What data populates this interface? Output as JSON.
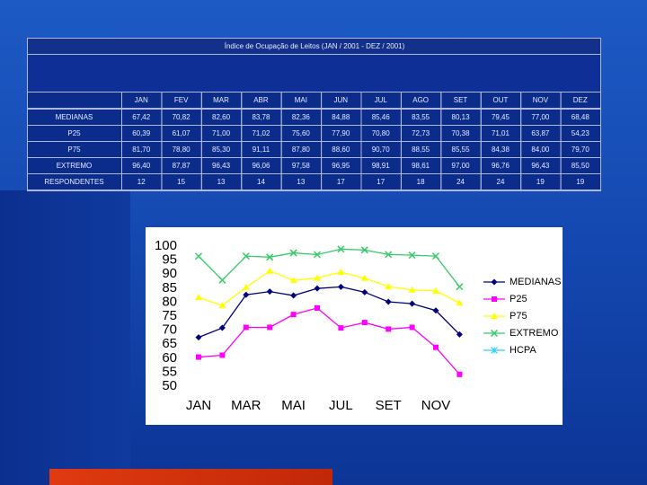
{
  "table": {
    "title": "Índice de Ocupação de Leitos (JAN / 2001 - DEZ / 2001)",
    "header": [
      "JAN",
      "FEV",
      "MAR",
      "ABR",
      "MAI",
      "JUN",
      "JUL",
      "AGO",
      "SET",
      "OUT",
      "NOV",
      "DEZ"
    ],
    "rows": [
      [
        "MEDIANAS",
        "67,42",
        "70,82",
        "82,60",
        "83,78",
        "82,36",
        "84,88",
        "85,46",
        "83,55",
        "80,13",
        "79,45",
        "77,00",
        "68,48"
      ],
      [
        "P25",
        "60,39",
        "61,07",
        "71,00",
        "71,02",
        "75,60",
        "77,90",
        "70,80",
        "72,73",
        "70,38",
        "71,01",
        "63,87",
        "54,23"
      ],
      [
        "P75",
        "81,70",
        "78,80",
        "85,30",
        "91,11",
        "87,80",
        "88,60",
        "90,70",
        "88,55",
        "85,55",
        "84,38",
        "84,00",
        "79,70"
      ],
      [
        "EXTREMO",
        "96,40",
        "87,87",
        "96,43",
        "96,06",
        "97,58",
        "96,95",
        "98,91",
        "98,61",
        "97,00",
        "96,76",
        "96,43",
        "85,50"
      ],
      [
        "RESPONDENTES",
        "12",
        "15",
        "13",
        "14",
        "13",
        "17",
        "17",
        "18",
        "24",
        "24",
        "19",
        "19"
      ]
    ]
  },
  "chart_data": {
    "type": "line",
    "categories": [
      "JAN",
      null,
      "MAR",
      null,
      "MAI",
      null,
      "JUL",
      null,
      "SET",
      null,
      "NOV",
      null
    ],
    "series": [
      {
        "name": "MEDIANAS",
        "color": "#000080",
        "marker": "diamond",
        "values": [
          67.42,
          70.82,
          82.6,
          83.78,
          82.36,
          84.88,
          85.46,
          83.55,
          80.13,
          79.45,
          77.0,
          68.48
        ]
      },
      {
        "name": "P25",
        "color": "#ff00ff",
        "marker": "square",
        "values": [
          60.39,
          61.07,
          71.0,
          71.02,
          75.6,
          77.9,
          70.8,
          72.73,
          70.38,
          71.01,
          63.87,
          54.23
        ]
      },
      {
        "name": "P75",
        "color": "#ffff00",
        "marker": "triangle",
        "values": [
          81.7,
          78.8,
          85.3,
          91.11,
          87.8,
          88.6,
          90.7,
          88.55,
          85.55,
          84.38,
          84.0,
          79.7
        ]
      },
      {
        "name": "EXTREMO",
        "color": "#33cc66",
        "marker": "x",
        "values": [
          96.4,
          87.87,
          96.43,
          96.06,
          97.58,
          96.95,
          98.91,
          98.61,
          97.0,
          96.76,
          96.43,
          85.5
        ]
      },
      {
        "name": "HCPA",
        "color": "#33ccff",
        "marker": "star",
        "values": [
          null,
          null,
          null,
          null,
          null,
          null,
          null,
          null,
          null,
          null,
          null,
          null
        ]
      }
    ],
    "ylim": [
      50,
      100
    ],
    "yticks": [
      50,
      55,
      60,
      65,
      70,
      75,
      80,
      85,
      90,
      95,
      100
    ]
  }
}
